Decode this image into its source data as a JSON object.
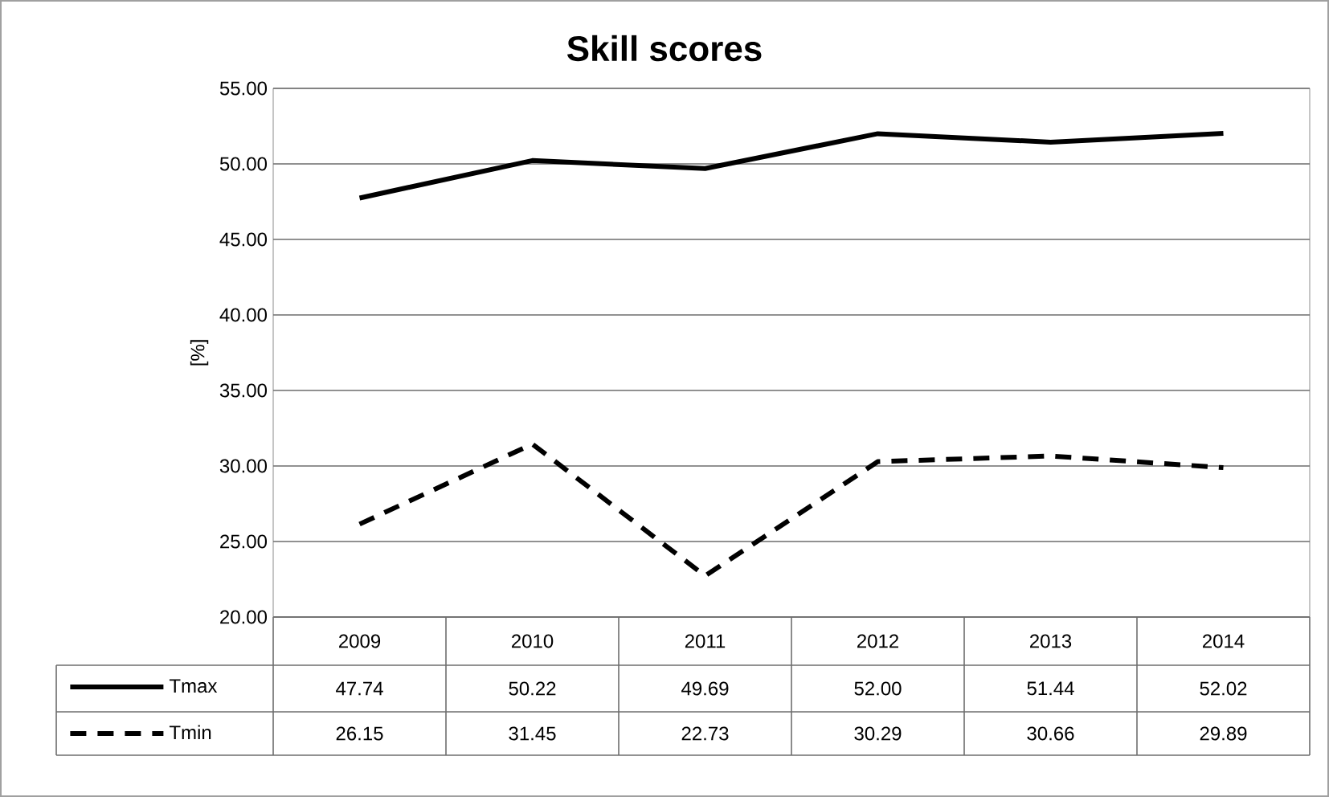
{
  "chart_data": {
    "type": "line",
    "title": "Skill scores",
    "ylabel": "[%]",
    "categories": [
      "2009",
      "2010",
      "2011",
      "2012",
      "2013",
      "2014"
    ],
    "series": [
      {
        "name": "Tmax",
        "color": "#000000",
        "line_style": "solid",
        "values": [
          47.74,
          50.22,
          49.69,
          52.0,
          51.44,
          52.02
        ],
        "value_labels": [
          "47.74",
          "50.22",
          "49.69",
          "52.00",
          "51.44",
          "52.02"
        ]
      },
      {
        "name": "Tmin",
        "color": "#000000",
        "line_style": "dashed",
        "values": [
          26.15,
          31.45,
          22.73,
          30.29,
          30.66,
          29.89
        ],
        "value_labels": [
          "26.15",
          "31.45",
          "22.73",
          "30.29",
          "30.66",
          "29.89"
        ]
      }
    ],
    "ylim": [
      20,
      55
    ],
    "yticks": [
      {
        "value": 20,
        "label": "20.00"
      },
      {
        "value": 25,
        "label": "25.00"
      },
      {
        "value": 30,
        "label": "30.00"
      },
      {
        "value": 35,
        "label": "35.00"
      },
      {
        "value": 40,
        "label": "40.00"
      },
      {
        "value": 45,
        "label": "45.00"
      },
      {
        "value": 50,
        "label": "50.00"
      },
      {
        "value": 55,
        "label": "55.00"
      }
    ],
    "grid": "y",
    "legend": "bottom",
    "marker": "none"
  }
}
